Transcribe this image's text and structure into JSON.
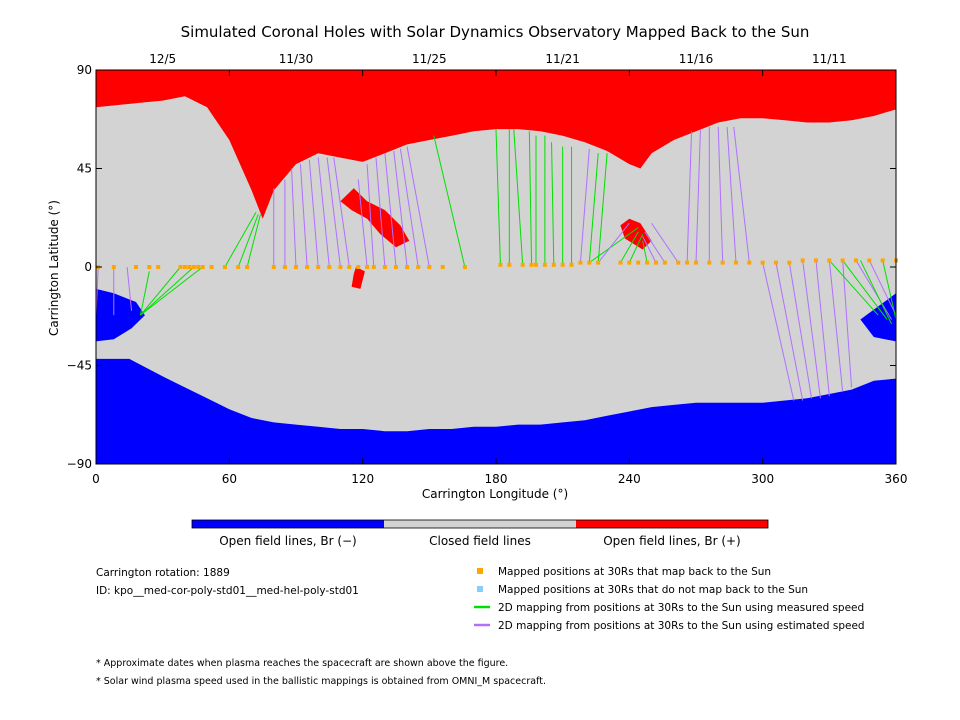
{
  "chart_data": {
    "type": "map",
    "title": "Simulated Coronal Holes with Solar Dynamics Observatory Mapped Back to the Sun",
    "xlabel": "Carrington Longitude (°)",
    "ylabel": "Carrington Latitude (°)",
    "xlim": [
      0,
      360
    ],
    "ylim": [
      -90,
      90
    ],
    "x_ticks": [
      "0",
      "60",
      "120",
      "180",
      "240",
      "300",
      "360"
    ],
    "y_ticks": [
      "90",
      "45",
      "0",
      "−45",
      "−90"
    ],
    "date_ticks": [
      {
        "label": "12/5",
        "lon": 30
      },
      {
        "label": "11/30",
        "lon": 90
      },
      {
        "label": "11/25",
        "lon": 150
      },
      {
        "label": "11/21",
        "lon": 210
      },
      {
        "label": "11/16",
        "lon": 270
      },
      {
        "label": "11/11",
        "lon": 330
      }
    ],
    "colorbar": [
      {
        "label": "Open field lines, Br (−)",
        "color": "#0000ff"
      },
      {
        "label": "Closed field lines",
        "color": "#d3d3d3"
      },
      {
        "label": "Open field lines, Br (+)",
        "color": "#ff0000"
      }
    ],
    "info": {
      "rotation": "Carrington rotation: 1889",
      "id": "ID: kpo__med-cor-poly-std01__med-hel-poly-std01"
    },
    "legend": [
      {
        "label": "Mapped positions at 30Rs that map back to the Sun",
        "color": "#ffa500",
        "kind": "square"
      },
      {
        "label": "Mapped positions at 30Rs that do not map back to the Sun",
        "color": "#87cefa",
        "kind": "square"
      },
      {
        "label": "2D mapping from positions at 30Rs to the Sun using measured speed",
        "color": "#00e000",
        "kind": "line"
      },
      {
        "label": "2D mapping from positions at 30Rs to the Sun using estimated speed",
        "color": "#b070ff",
        "kind": "line"
      }
    ],
    "footnotes": [
      "* Approximate dates when plasma reaches the spacecraft are shown above the figure.",
      "* Solar wind plasma speed used in the ballistic mappings is obtained from OMNI_M spacecraft."
    ],
    "colors": {
      "negative": "#0000ff",
      "closed": "#d3d3d3",
      "positive": "#ff0000",
      "point": "#ffa500",
      "measured": "#00e000",
      "estimated": "#b070ff"
    },
    "regions": {
      "north_positive_boundary": [
        [
          0,
          73
        ],
        [
          10,
          74
        ],
        [
          20,
          75
        ],
        [
          30,
          76
        ],
        [
          40,
          78
        ],
        [
          50,
          73
        ],
        [
          60,
          58
        ],
        [
          70,
          35
        ],
        [
          75,
          22
        ],
        [
          80,
          35
        ],
        [
          90,
          47
        ],
        [
          100,
          52
        ],
        [
          110,
          50
        ],
        [
          120,
          48
        ],
        [
          130,
          52
        ],
        [
          140,
          56
        ],
        [
          150,
          58
        ],
        [
          160,
          60
        ],
        [
          170,
          62
        ],
        [
          180,
          63
        ],
        [
          190,
          63
        ],
        [
          200,
          62
        ],
        [
          210,
          60
        ],
        [
          220,
          57
        ],
        [
          230,
          53
        ],
        [
          240,
          47
        ],
        [
          245,
          45
        ],
        [
          250,
          52
        ],
        [
          260,
          58
        ],
        [
          270,
          62
        ],
        [
          280,
          66
        ],
        [
          290,
          68
        ],
        [
          300,
          68
        ],
        [
          310,
          67
        ],
        [
          320,
          66
        ],
        [
          330,
          66
        ],
        [
          340,
          67
        ],
        [
          350,
          69
        ],
        [
          360,
          72
        ]
      ],
      "south_negative_boundary": [
        [
          0,
          -42
        ],
        [
          15,
          -42
        ],
        [
          30,
          -50
        ],
        [
          40,
          -55
        ],
        [
          50,
          -60
        ],
        [
          60,
          -65
        ],
        [
          70,
          -69
        ],
        [
          80,
          -71
        ],
        [
          90,
          -72
        ],
        [
          100,
          -73
        ],
        [
          110,
          -74
        ],
        [
          120,
          -74
        ],
        [
          130,
          -75
        ],
        [
          140,
          -75
        ],
        [
          150,
          -74
        ],
        [
          160,
          -74
        ],
        [
          170,
          -73
        ],
        [
          180,
          -73
        ],
        [
          190,
          -72
        ],
        [
          200,
          -72
        ],
        [
          210,
          -71
        ],
        [
          220,
          -70
        ],
        [
          230,
          -68
        ],
        [
          240,
          -66
        ],
        [
          250,
          -64
        ],
        [
          260,
          -63
        ],
        [
          270,
          -62
        ],
        [
          280,
          -62
        ],
        [
          290,
          -62
        ],
        [
          300,
          -62
        ],
        [
          310,
          -61
        ],
        [
          320,
          -60
        ],
        [
          330,
          -58
        ],
        [
          340,
          -56
        ],
        [
          350,
          -52
        ],
        [
          360,
          -51
        ]
      ],
      "lobe_sw": [
        [
          0,
          -10
        ],
        [
          8,
          -12
        ],
        [
          18,
          -16
        ],
        [
          22,
          -22
        ],
        [
          16,
          -28
        ],
        [
          8,
          -33
        ],
        [
          0,
          -34
        ]
      ],
      "lobe_se": [
        [
          360,
          -12
        ],
        [
          352,
          -18
        ],
        [
          344,
          -24
        ],
        [
          350,
          -32
        ],
        [
          360,
          -34
        ]
      ],
      "red_tongue": [
        [
          110,
          30
        ],
        [
          115,
          26
        ],
        [
          122,
          22
        ],
        [
          128,
          15
        ],
        [
          135,
          9
        ],
        [
          141,
          12
        ],
        [
          137,
          19
        ],
        [
          130,
          26
        ],
        [
          122,
          30
        ],
        [
          116,
          36
        ]
      ],
      "red_tail": [
        [
          117,
          0
        ],
        [
          121,
          -2
        ],
        [
          119,
          -10
        ],
        [
          115,
          -9
        ],
        [
          116,
          -3
        ]
      ],
      "red_blob": [
        [
          240,
          22
        ],
        [
          245,
          20
        ],
        [
          250,
          12
        ],
        [
          246,
          8
        ],
        [
          238,
          13
        ],
        [
          236,
          19
        ]
      ]
    },
    "points_lon": [
      1,
      8,
      18,
      24,
      28,
      38,
      40,
      42,
      44,
      46,
      48,
      52,
      58,
      64,
      68,
      80,
      85,
      90,
      95,
      100,
      105,
      110,
      114,
      118,
      122,
      125,
      130,
      135,
      140,
      145,
      150,
      156,
      166,
      182,
      186,
      192,
      196,
      198,
      202,
      206,
      210,
      214,
      218,
      222,
      226,
      236,
      240,
      244,
      248,
      252,
      256,
      262,
      266,
      270,
      276,
      282,
      288,
      294,
      300,
      306,
      312,
      318,
      324,
      330,
      336,
      342,
      348,
      354,
      360
    ],
    "points_lat": [
      0,
      0,
      0,
      0,
      0,
      0,
      0,
      0,
      0,
      0,
      0,
      0,
      0,
      0,
      0,
      0,
      0,
      0,
      0,
      0,
      0,
      0,
      0,
      0,
      0,
      0,
      0,
      0,
      0,
      0,
      0,
      0,
      0,
      1,
      1,
      1,
      1,
      1,
      1,
      1,
      1,
      1,
      2,
      2,
      2,
      2,
      2,
      2,
      2,
      2,
      2,
      2,
      2,
      2,
      2,
      2,
      2,
      2,
      2,
      2,
      2,
      3,
      3,
      3,
      3,
      3,
      3,
      3,
      3
    ],
    "mapping_lines": [
      {
        "kind": "measured",
        "from": [
          24,
          -2
        ],
        "to": [
          20,
          -22
        ]
      },
      {
        "kind": "measured",
        "from": [
          38,
          0
        ],
        "to": [
          20,
          -22
        ]
      },
      {
        "kind": "measured",
        "from": [
          44,
          0
        ],
        "to": [
          20,
          -22
        ]
      },
      {
        "kind": "measured",
        "from": [
          48,
          0
        ],
        "to": [
          20,
          -22
        ]
      },
      {
        "kind": "estimated",
        "from": [
          8,
          0
        ],
        "to": [
          8,
          -22
        ]
      },
      {
        "kind": "estimated",
        "from": [
          14,
          0
        ],
        "to": [
          16,
          -20
        ]
      },
      {
        "kind": "estimated",
        "from": [
          1,
          0
        ],
        "to": [
          0,
          -22
        ]
      },
      {
        "kind": "measured",
        "from": [
          58,
          0
        ],
        "to": [
          72,
          25
        ]
      },
      {
        "kind": "measured",
        "from": [
          64,
          0
        ],
        "to": [
          73,
          24
        ]
      },
      {
        "kind": "measured",
        "from": [
          68,
          0
        ],
        "to": [
          74,
          24
        ]
      },
      {
        "kind": "estimated",
        "from": [
          80,
          0
        ],
        "to": [
          80,
          36
        ]
      },
      {
        "kind": "estimated",
        "from": [
          85,
          0
        ],
        "to": [
          85,
          40
        ]
      },
      {
        "kind": "estimated",
        "from": [
          90,
          0
        ],
        "to": [
          88,
          45
        ]
      },
      {
        "kind": "estimated",
        "from": [
          95,
          0
        ],
        "to": [
          92,
          47
        ]
      },
      {
        "kind": "estimated",
        "from": [
          100,
          0
        ],
        "to": [
          96,
          49
        ]
      },
      {
        "kind": "estimated",
        "from": [
          105,
          0
        ],
        "to": [
          100,
          50
        ]
      },
      {
        "kind": "estimated",
        "from": [
          110,
          0
        ],
        "to": [
          104,
          50
        ]
      },
      {
        "kind": "estimated",
        "from": [
          114,
          0
        ],
        "to": [
          107,
          50
        ]
      },
      {
        "kind": "estimated",
        "from": [
          122,
          0
        ],
        "to": [
          118,
          40
        ]
      },
      {
        "kind": "estimated",
        "from": [
          125,
          0
        ],
        "to": [
          122,
          47
        ]
      },
      {
        "kind": "estimated",
        "from": [
          130,
          0
        ],
        "to": [
          126,
          50
        ]
      },
      {
        "kind": "estimated",
        "from": [
          135,
          0
        ],
        "to": [
          130,
          52
        ]
      },
      {
        "kind": "estimated",
        "from": [
          140,
          0
        ],
        "to": [
          134,
          53
        ]
      },
      {
        "kind": "estimated",
        "from": [
          145,
          0
        ],
        "to": [
          137,
          54
        ]
      },
      {
        "kind": "estimated",
        "from": [
          150,
          0
        ],
        "to": [
          140,
          55
        ]
      },
      {
        "kind": "measured",
        "from": [
          166,
          0
        ],
        "to": [
          152,
          60
        ]
      },
      {
        "kind": "measured",
        "from": [
          182,
          1
        ],
        "to": [
          180,
          63
        ]
      },
      {
        "kind": "measured",
        "from": [
          186,
          1
        ],
        "to": [
          186,
          63
        ]
      },
      {
        "kind": "measured",
        "from": [
          192,
          1
        ],
        "to": [
          188,
          63
        ]
      },
      {
        "kind": "measured",
        "from": [
          196,
          1
        ],
        "to": [
          195,
          62
        ]
      },
      {
        "kind": "measured",
        "from": [
          198,
          1
        ],
        "to": [
          198,
          60
        ]
      },
      {
        "kind": "measured",
        "from": [
          202,
          1
        ],
        "to": [
          202,
          60
        ]
      },
      {
        "kind": "measured",
        "from": [
          206,
          1
        ],
        "to": [
          205,
          57
        ]
      },
      {
        "kind": "measured",
        "from": [
          210,
          1
        ],
        "to": [
          210,
          55
        ]
      },
      {
        "kind": "measured",
        "from": [
          214,
          1
        ],
        "to": [
          214,
          55
        ]
      },
      {
        "kind": "estimated",
        "from": [
          218,
          2
        ],
        "to": [
          222,
          54
        ]
      },
      {
        "kind": "measured",
        "from": [
          222,
          2
        ],
        "to": [
          226,
          52
        ]
      },
      {
        "kind": "measured",
        "from": [
          226,
          2
        ],
        "to": [
          230,
          52
        ]
      },
      {
        "kind": "measured",
        "from": [
          222,
          2
        ],
        "to": [
          244,
          18
        ]
      },
      {
        "kind": "measured",
        "from": [
          236,
          2
        ],
        "to": [
          244,
          16
        ]
      },
      {
        "kind": "measured",
        "from": [
          240,
          2
        ],
        "to": [
          246,
          15
        ]
      },
      {
        "kind": "measured",
        "from": [
          248,
          2
        ],
        "to": [
          246,
          12
        ]
      },
      {
        "kind": "estimated",
        "from": [
          226,
          2
        ],
        "to": [
          240,
          20
        ]
      },
      {
        "kind": "estimated",
        "from": [
          252,
          2
        ],
        "to": [
          246,
          14
        ]
      },
      {
        "kind": "estimated",
        "from": [
          256,
          2
        ],
        "to": [
          247,
          16
        ]
      },
      {
        "kind": "estimated",
        "from": [
          262,
          2
        ],
        "to": [
          250,
          20
        ]
      },
      {
        "kind": "estimated",
        "from": [
          266,
          2
        ],
        "to": [
          268,
          62
        ]
      },
      {
        "kind": "estimated",
        "from": [
          270,
          2
        ],
        "to": [
          272,
          63
        ]
      },
      {
        "kind": "estimated",
        "from": [
          276,
          2
        ],
        "to": [
          276,
          64
        ]
      },
      {
        "kind": "estimated",
        "from": [
          282,
          2
        ],
        "to": [
          280,
          64
        ]
      },
      {
        "kind": "estimated",
        "from": [
          288,
          2
        ],
        "to": [
          284,
          64
        ]
      },
      {
        "kind": "estimated",
        "from": [
          294,
          2
        ],
        "to": [
          287,
          64
        ]
      },
      {
        "kind": "estimated",
        "from": [
          300,
          2
        ],
        "to": [
          314,
          -61
        ]
      },
      {
        "kind": "estimated",
        "from": [
          306,
          2
        ],
        "to": [
          318,
          -61
        ]
      },
      {
        "kind": "estimated",
        "from": [
          312,
          2
        ],
        "to": [
          322,
          -60
        ]
      },
      {
        "kind": "estimated",
        "from": [
          318,
          3
        ],
        "to": [
          326,
          -60
        ]
      },
      {
        "kind": "estimated",
        "from": [
          324,
          3
        ],
        "to": [
          330,
          -59
        ]
      },
      {
        "kind": "estimated",
        "from": [
          330,
          3
        ],
        "to": [
          336,
          -57
        ]
      },
      {
        "kind": "estimated",
        "from": [
          336,
          3
        ],
        "to": [
          340,
          -55
        ]
      },
      {
        "kind": "estimated",
        "from": [
          342,
          3
        ],
        "to": [
          358,
          -24
        ]
      },
      {
        "kind": "estimated",
        "from": [
          348,
          3
        ],
        "to": [
          360,
          -22
        ]
      },
      {
        "kind": "measured",
        "from": [
          330,
          3
        ],
        "to": [
          352,
          -22
        ]
      },
      {
        "kind": "measured",
        "from": [
          336,
          3
        ],
        "to": [
          356,
          -24
        ]
      },
      {
        "kind": "measured",
        "from": [
          344,
          3
        ],
        "to": [
          358,
          -26
        ]
      },
      {
        "kind": "measured",
        "from": [
          354,
          3
        ],
        "to": [
          360,
          -24
        ]
      }
    ]
  }
}
